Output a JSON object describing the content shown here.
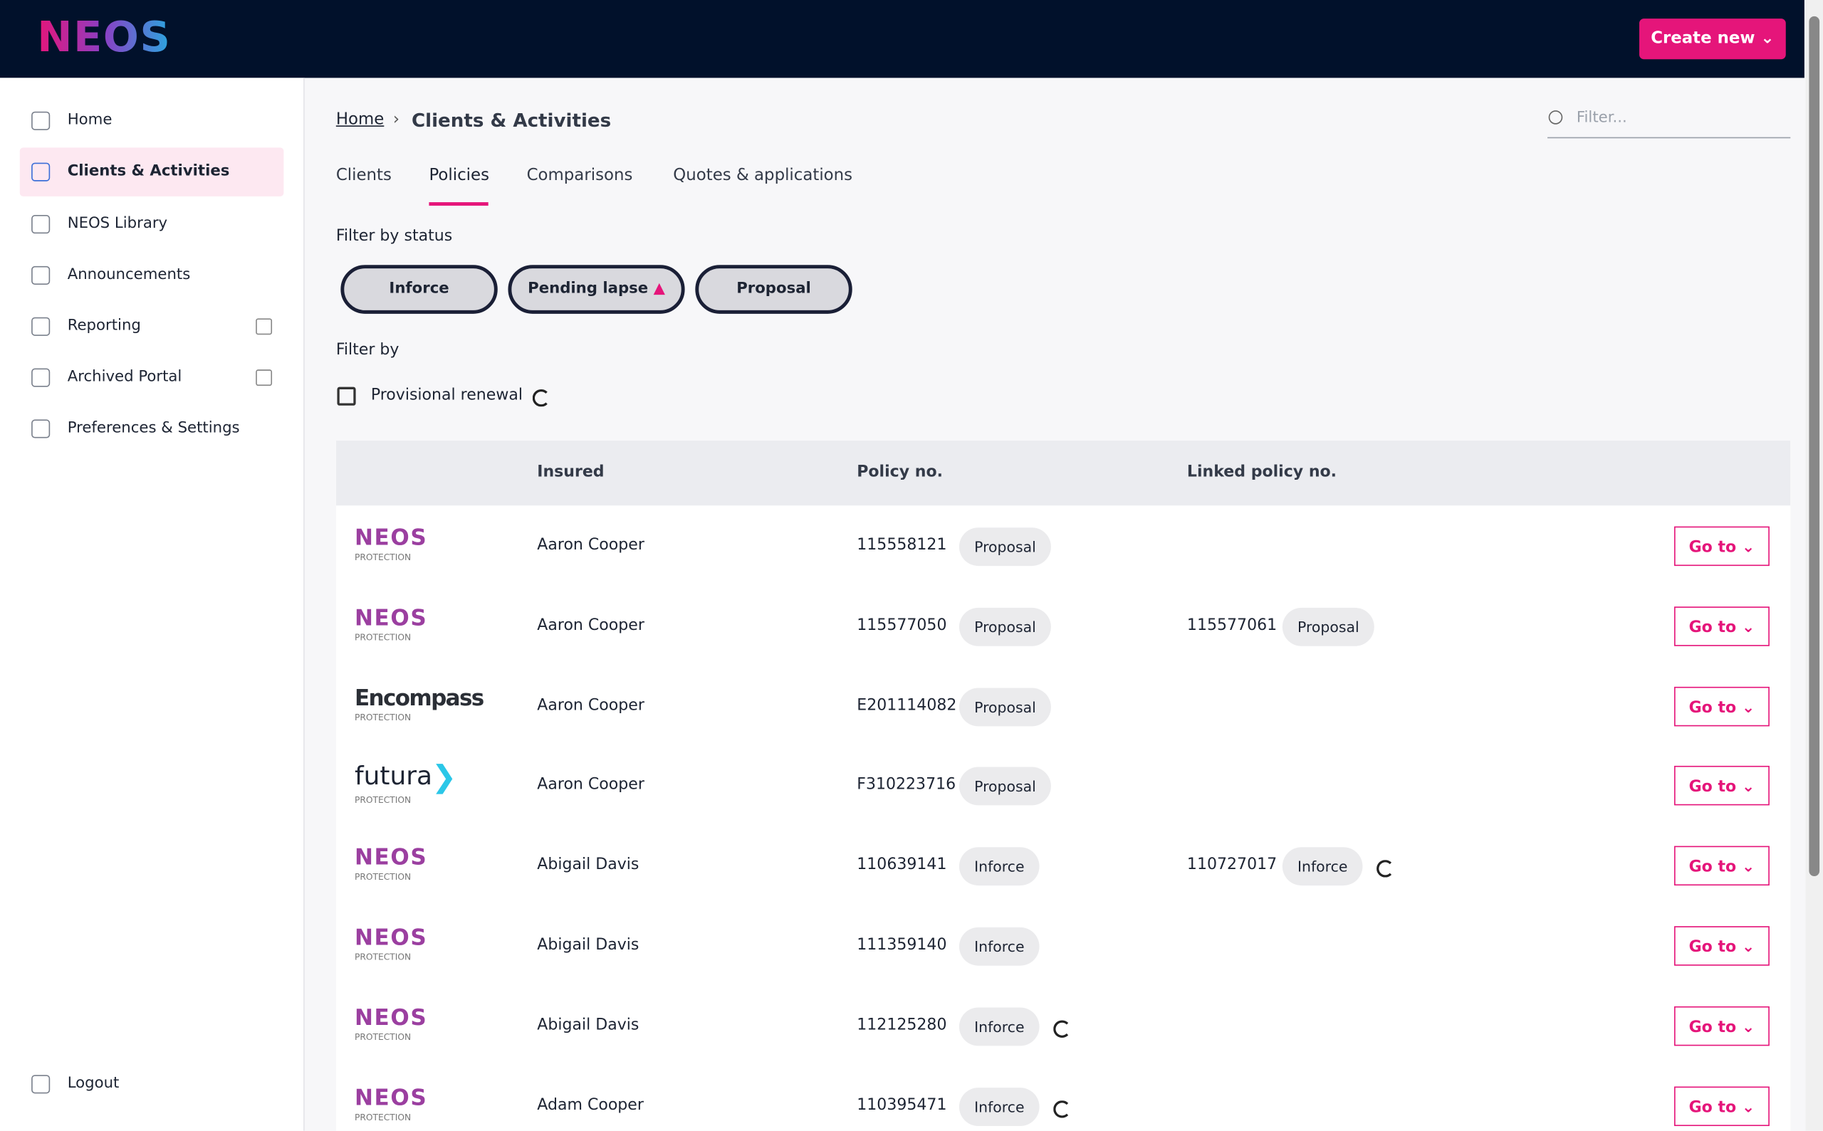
{
  "header": {
    "logo": "NEOS",
    "create_button": "Create new"
  },
  "nav": {
    "items": [
      "Home",
      "Clients & Activities",
      "NEOS Library",
      "Announcements",
      "Reporting",
      "Archived Portal",
      "Preferences & Settings"
    ],
    "logout": "Logout"
  },
  "breadcrumb": {
    "home": "Home",
    "current": "Clients & Activities"
  },
  "search": {
    "placeholder": "Filter..."
  },
  "tabs": [
    "Clients",
    "Policies",
    "Comparisons",
    "Quotes & applications"
  ],
  "filters": {
    "status_label": "Filter by status",
    "chips": [
      "Inforce",
      "Pending lapse",
      "Proposal"
    ],
    "by_label": "Filter by",
    "checkbox_label": "Provisional renewal"
  },
  "table": {
    "headers": [
      "Insured",
      "Policy no.",
      "Linked policy no."
    ],
    "action_label": "Go to",
    "rows": [
      {
        "provider": "NEOS",
        "provider_sub": "PROTECTION",
        "insured": "Aaron Cooper",
        "policy": "115558121",
        "status": "Proposal"
      },
      {
        "provider": "NEOS",
        "provider_sub": "PROTECTION",
        "insured": "Aaron Cooper",
        "policy": "115577050",
        "status": "Proposal",
        "linked": "115577061",
        "linked_status": "Proposal"
      },
      {
        "provider": "Encompass",
        "provider_sub": "PROTECTION",
        "insured": "Aaron Cooper",
        "policy": "E201114082",
        "status": "Proposal"
      },
      {
        "provider": "futura",
        "provider_sub": "PROTECTION",
        "insured": "Aaron Cooper",
        "policy": "F310223716",
        "status": "Proposal"
      },
      {
        "provider": "NEOS",
        "provider_sub": "PROTECTION",
        "insured": "Abigail Davis",
        "policy": "110639141",
        "status": "Inforce",
        "linked": "110727017",
        "linked_status": "Inforce",
        "linked_renewal": true
      },
      {
        "provider": "NEOS",
        "provider_sub": "PROTECTION",
        "insured": "Abigail Davis",
        "policy": "111359140",
        "status": "Inforce"
      },
      {
        "provider": "NEOS",
        "provider_sub": "PROTECTION",
        "insured": "Abigail Davis",
        "policy": "112125280",
        "status": "Inforce",
        "policy_renewal": true
      },
      {
        "provider": "NEOS",
        "provider_sub": "PROTECTION",
        "insured": "Adam Cooper",
        "policy": "110395471",
        "status": "Inforce",
        "policy_renewal": true
      }
    ]
  }
}
